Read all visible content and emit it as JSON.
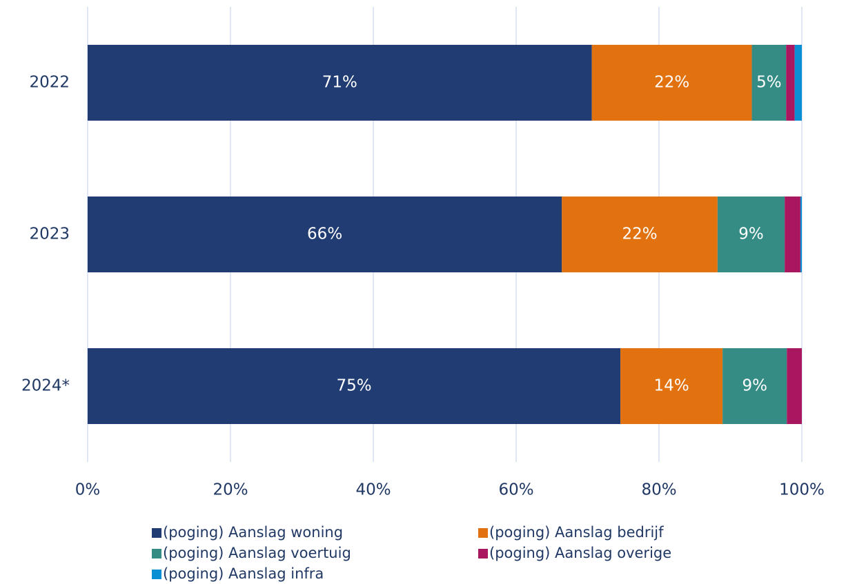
{
  "chart_data": {
    "type": "stacked-barh",
    "categories": [
      "2022",
      "2023",
      "2024*"
    ],
    "series": [
      {
        "name": "(poging) Aanslag woning",
        "color": "#213c73",
        "values": [
          70.6,
          66.4,
          74.6
        ],
        "value_labels": [
          "71%",
          "66%",
          "75%"
        ]
      },
      {
        "name": "(poging) Aanslag bedrijf",
        "color": "#e2710f",
        "values": [
          22.4,
          21.8,
          14.3
        ],
        "value_labels": [
          "22%",
          "22%",
          "14%"
        ]
      },
      {
        "name": "(poging) Aanslag voertuig",
        "color": "#358c85",
        "values": [
          4.8,
          9.4,
          9.0
        ],
        "value_labels": [
          "5%",
          "9%",
          "9%"
        ]
      },
      {
        "name": "(poging) Aanslag overige",
        "color": "#a8175f",
        "values": [
          1.2,
          2.2,
          2.1
        ],
        "value_labels": [
          null,
          null,
          null
        ]
      },
      {
        "name": "(poging) Aanslag infra",
        "color": "#0a8fd4",
        "values": [
          1.0,
          0.2,
          0
        ],
        "value_labels": [
          null,
          null,
          null
        ]
      }
    ],
    "xlim": [
      0,
      100
    ],
    "xticks": [
      {
        "value": 0,
        "label": "0%"
      },
      {
        "value": 20,
        "label": "20%"
      },
      {
        "value": 40,
        "label": "40%"
      },
      {
        "value": 60,
        "label": "60%"
      },
      {
        "value": 80,
        "label": "80%"
      },
      {
        "value": 100,
        "label": "100%"
      }
    ],
    "grid": true,
    "legend": "bottom"
  }
}
